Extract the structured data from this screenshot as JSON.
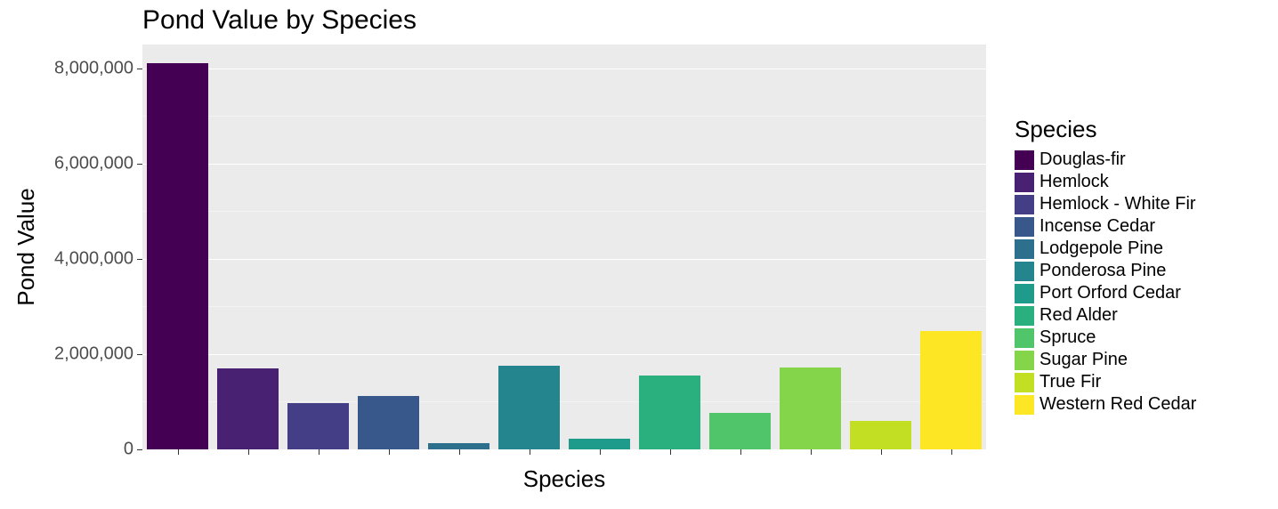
{
  "chart": {
    "type": "bar",
    "title": "Pond Value by Species",
    "title_fontsize": 30,
    "xlabel": "Species",
    "ylabel": "Pond Value",
    "label_fontsize": 26,
    "tick_fontsize": 20,
    "background_color": "#ffffff",
    "panel_color": "#ebebeb",
    "grid_color": "#ffffff",
    "ylim": [
      0,
      8500000
    ],
    "ytick_step": 2000000,
    "yticks": [
      0,
      2000000,
      4000000,
      6000000,
      8000000
    ],
    "ytick_labels": [
      "0",
      "2,000,000",
      "4,000,000",
      "6,000,000",
      "8,000,000"
    ],
    "bar_width": 0.88,
    "categories": [
      "Douglas-fir",
      "Hemlock",
      "Hemlock - White Fir",
      "Incense Cedar",
      "Lodgepole Pine",
      "Ponderosa Pine",
      "Port Orford Cedar",
      "Red Alder",
      "Spruce",
      "Sugar Pine",
      "True Fir",
      "Western Red Cedar"
    ],
    "values": [
      8100000,
      1700000,
      980000,
      1120000,
      130000,
      1760000,
      220000,
      1560000,
      770000,
      1720000,
      600000,
      2480000
    ],
    "bar_colors": [
      "#440154",
      "#482173",
      "#433e85",
      "#38588c",
      "#2d708e",
      "#25858e",
      "#1e9b8a",
      "#2ab07f",
      "#51c56a",
      "#85d54a",
      "#c2df23",
      "#fde725"
    ],
    "legend": {
      "title": "Species",
      "title_fontsize": 26,
      "item_fontsize": 20,
      "position": "right"
    }
  }
}
